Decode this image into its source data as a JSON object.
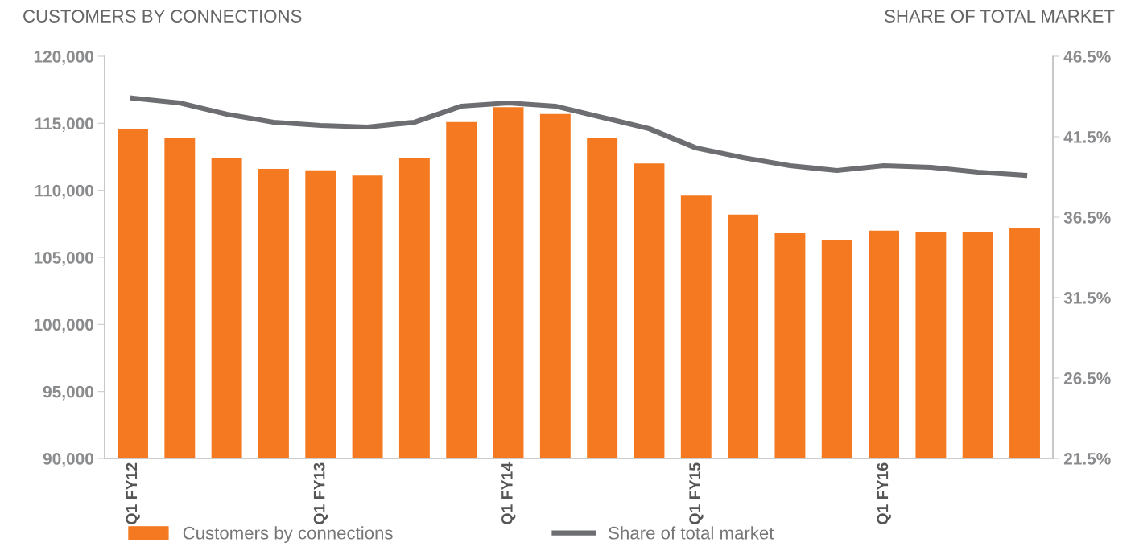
{
  "chart_data": {
    "type": "bar",
    "ylabel": "CUSTOMERS BY CONNECTIONS",
    "y2label": "SHARE OF TOTAL MARKET",
    "categories": [
      "Q1 FY12",
      null,
      null,
      null,
      "Q1 FY13",
      null,
      null,
      null,
      "Q1 FY14",
      null,
      null,
      null,
      "Q1 FY15",
      null,
      null,
      null,
      "Q1 FY16",
      null,
      null,
      null
    ],
    "series": [
      {
        "name": "Customers by connections",
        "color": "#f47920",
        "values": [
          114600,
          113900,
          112400,
          111600,
          111500,
          111100,
          112400,
          115100,
          116200,
          115700,
          113900,
          112000,
          109600,
          108200,
          106800,
          106300,
          107000,
          106900,
          106900,
          107200
        ]
      },
      {
        "name": "Share of total market",
        "type": "line",
        "axis": "y2",
        "color": "#6d6e71",
        "values": [
          43.9,
          43.6,
          42.9,
          42.4,
          42.2,
          42.1,
          42.4,
          43.4,
          43.6,
          43.4,
          42.7,
          42.0,
          40.8,
          40.2,
          39.7,
          39.4,
          39.7,
          39.6,
          39.3,
          39.1
        ]
      }
    ],
    "ylim": [
      90000,
      120000
    ],
    "yticks": [
      {
        "value": 90000,
        "label": "90,000"
      },
      {
        "value": 95000,
        "label": "95,000"
      },
      {
        "value": 100000,
        "label": "100,000"
      },
      {
        "value": 105000,
        "label": "105,000"
      },
      {
        "value": 110000,
        "label": "110,000"
      },
      {
        "value": 115000,
        "label": "115,000"
      },
      {
        "value": 120000,
        "label": "120,000"
      }
    ],
    "y2lim": [
      21.5,
      46.5
    ],
    "y2ticks": [
      {
        "value": 21.5,
        "label": "21.5%"
      },
      {
        "value": 26.5,
        "label": "26.5%"
      },
      {
        "value": 31.5,
        "label": "31.5%"
      },
      {
        "value": 36.5,
        "label": "36.5%"
      },
      {
        "value": 41.5,
        "label": "41.5%"
      },
      {
        "value": 46.5,
        "label": "46.5%"
      }
    ],
    "grid": false,
    "legend": "bottom",
    "marker": "none",
    "line_style": "solid"
  }
}
